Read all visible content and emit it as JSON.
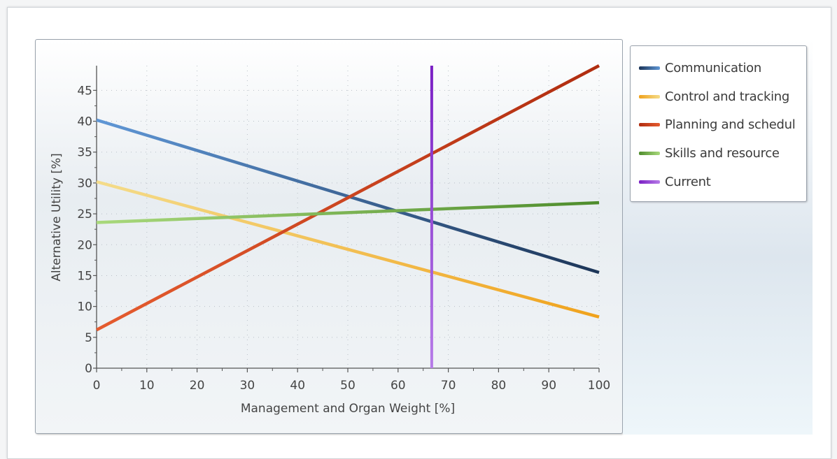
{
  "chart_data": {
    "type": "line",
    "xlabel": "Management and Organ Weight [%]",
    "ylabel": "Alternative Utility [%]",
    "xlim": [
      0,
      100
    ],
    "ylim": [
      0,
      49
    ],
    "x_ticks": [
      0,
      10,
      20,
      30,
      40,
      50,
      60,
      70,
      80,
      90,
      100
    ],
    "y_ticks": [
      0,
      5,
      10,
      15,
      20,
      25,
      30,
      35,
      40,
      45
    ],
    "grid": true,
    "legend_position": "right",
    "series": [
      {
        "name": "Communication",
        "x": [
          0,
          100
        ],
        "y": [
          40.2,
          15.5
        ],
        "color_light": "#5f97d6",
        "color_dark": "#1c3558"
      },
      {
        "name": "Control and tracking",
        "x": [
          0,
          100
        ],
        "y": [
          30.2,
          8.3
        ],
        "color_light": "#f4dc8a",
        "color_dark": "#f0a21c"
      },
      {
        "name": "Planning and schedul",
        "x": [
          0,
          100
        ],
        "y": [
          6.2,
          49.0
        ],
        "color_light": "#e55c2f",
        "color_dark": "#b02d10"
      },
      {
        "name": "Skills and resource",
        "x": [
          0,
          100
        ],
        "y": [
          23.6,
          26.8
        ],
        "color_light": "#a9d97c",
        "color_dark": "#4e8c2c"
      },
      {
        "name": "Current",
        "x": [
          66.7,
          66.7
        ],
        "y": [
          0,
          49
        ],
        "color_light": "#b77ce8",
        "color_dark": "#7a1fc4"
      }
    ]
  }
}
